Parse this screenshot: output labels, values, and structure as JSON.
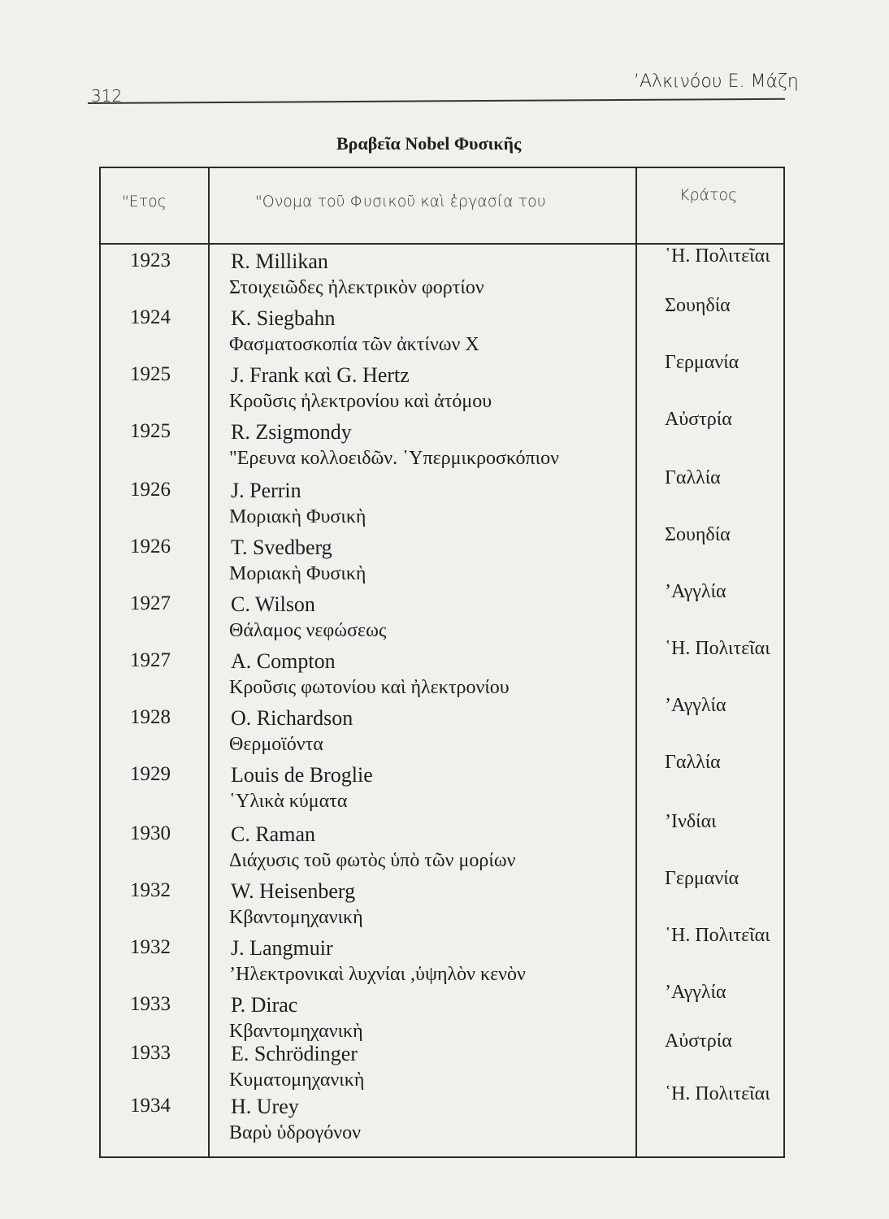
{
  "header": {
    "page_number": "312",
    "author": "’Αλκινόου Ε. Μάζη"
  },
  "title": "Βραβεῖα Nobel Φυσικῆς",
  "table": {
    "columns": [
      "\"Ετος",
      "\"Ονομα τοῦ Φυσικοῦ καὶ ἐργασία του",
      "Κράτος"
    ],
    "rows": [
      {
        "year": "1923",
        "name": "R. Millikan",
        "work": "Στοιχειῶδες ἠλεκτρικὸν φορτίον",
        "country": "῾Η. Πολιτεῖαι"
      },
      {
        "year": "1924",
        "name": "K. Siegbahn",
        "work": "Φασματοσκοπία τῶν ἀκτίνων X",
        "country": "Σουηδία"
      },
      {
        "year": "1925",
        "name": "J. Frank καὶ G. Hertz",
        "work": "Κροῦσις ἠλεκτρονίου καὶ ἀτόμου",
        "country": "Γερμανία"
      },
      {
        "year": "1925",
        "name": "R. Zsigmondy",
        "work": "\"Ερευνα κολλοειδῶν. ῾Υπερμικροσκόπιον",
        "country": "Αὐστρία"
      },
      {
        "year": "1926",
        "name": "J. Perrin",
        "work": "Μοριακὴ Φυσικὴ",
        "country": "Γαλλία"
      },
      {
        "year": "1926",
        "name": "T. Svedberg",
        "work": "Μοριακὴ Φυσικὴ",
        "country": "Σουηδία"
      },
      {
        "year": "1927",
        "name": "C. Wilson",
        "work": "Θάλαμος νεφώσεως",
        "country": "’Αγγλία"
      },
      {
        "year": "1927",
        "name": "A. Compton",
        "work": "Κροῦσις φωτονίου καὶ ἠλεκτρονίου",
        "country": "῾Η. Πολιτεῖαι"
      },
      {
        "year": "1928",
        "name": "O. Richardson",
        "work": "Θερμοϊόντα",
        "country": "’Αγγλία"
      },
      {
        "year": "1929",
        "name": "Louis de Broglie",
        "work": "῾Υλικὰ κύματα",
        "country": "Γαλλία"
      },
      {
        "year": "1930",
        "name": "C. Raman",
        "work": "Διάχυσις τοῦ φωτὸς ὑπὸ τῶν μορίων",
        "country": "’Ινδίαι"
      },
      {
        "year": "1932",
        "name": "W. Heisenberg",
        "work": "Κβαντομηχανικὴ",
        "country": "Γερμανία"
      },
      {
        "year": "1932",
        "name": "J. Langmuir",
        "work": "’Ηλεκτρονικαὶ λυχνίαι ,ὑψηλὸν κενὸν",
        "country": "῾Η. Πολιτεῖαι"
      },
      {
        "year": "1933",
        "name": "P. Dirac",
        "work": "Κβαντομηχανικὴ",
        "country": "’Αγγλία"
      },
      {
        "year": "1933",
        "name": "E. Schrödinger",
        "work": "Κυματομηχανικὴ",
        "country": "Αὐστρία"
      },
      {
        "year": "1934",
        "name": "H. Urey",
        "work": "Βαρὺ ὑδρογόνον",
        "country": "῾Η. Πολιτεῖαι"
      }
    ]
  }
}
